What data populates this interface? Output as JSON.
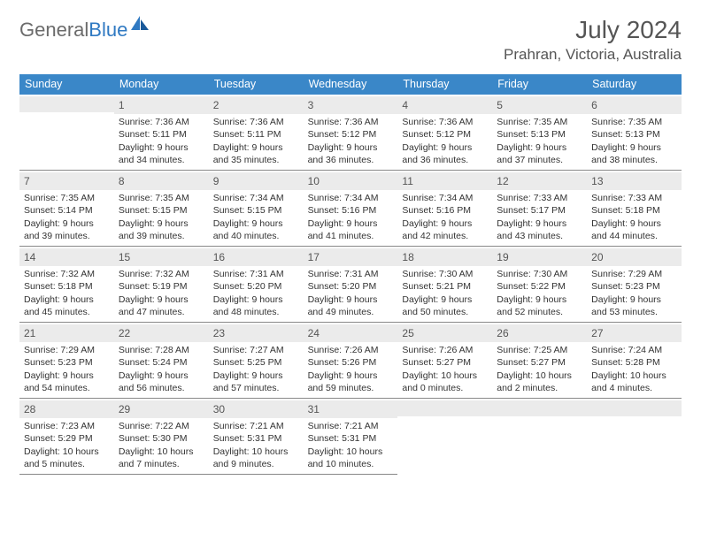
{
  "logo": {
    "text1": "General",
    "text2": "Blue"
  },
  "title": "July 2024",
  "location": "Prahran, Victoria, Australia",
  "header_bg": "#3a87c8",
  "header_fg": "#ffffff",
  "daynum_bg": "#ebebeb",
  "border_color": "#888888",
  "text_color": "#333333",
  "logo_blue": "#2f79c2",
  "logo_gray": "#6b6b6b",
  "weekdays": [
    "Sunday",
    "Monday",
    "Tuesday",
    "Wednesday",
    "Thursday",
    "Friday",
    "Saturday"
  ],
  "first_day_offset": 1,
  "days": [
    {
      "n": "1",
      "sunrise": "7:36 AM",
      "sunset": "5:11 PM",
      "daylight": "9 hours and 34 minutes."
    },
    {
      "n": "2",
      "sunrise": "7:36 AM",
      "sunset": "5:11 PM",
      "daylight": "9 hours and 35 minutes."
    },
    {
      "n": "3",
      "sunrise": "7:36 AM",
      "sunset": "5:12 PM",
      "daylight": "9 hours and 36 minutes."
    },
    {
      "n": "4",
      "sunrise": "7:36 AM",
      "sunset": "5:12 PM",
      "daylight": "9 hours and 36 minutes."
    },
    {
      "n": "5",
      "sunrise": "7:35 AM",
      "sunset": "5:13 PM",
      "daylight": "9 hours and 37 minutes."
    },
    {
      "n": "6",
      "sunrise": "7:35 AM",
      "sunset": "5:13 PM",
      "daylight": "9 hours and 38 minutes."
    },
    {
      "n": "7",
      "sunrise": "7:35 AM",
      "sunset": "5:14 PM",
      "daylight": "9 hours and 39 minutes."
    },
    {
      "n": "8",
      "sunrise": "7:35 AM",
      "sunset": "5:15 PM",
      "daylight": "9 hours and 39 minutes."
    },
    {
      "n": "9",
      "sunrise": "7:34 AM",
      "sunset": "5:15 PM",
      "daylight": "9 hours and 40 minutes."
    },
    {
      "n": "10",
      "sunrise": "7:34 AM",
      "sunset": "5:16 PM",
      "daylight": "9 hours and 41 minutes."
    },
    {
      "n": "11",
      "sunrise": "7:34 AM",
      "sunset": "5:16 PM",
      "daylight": "9 hours and 42 minutes."
    },
    {
      "n": "12",
      "sunrise": "7:33 AM",
      "sunset": "5:17 PM",
      "daylight": "9 hours and 43 minutes."
    },
    {
      "n": "13",
      "sunrise": "7:33 AM",
      "sunset": "5:18 PM",
      "daylight": "9 hours and 44 minutes."
    },
    {
      "n": "14",
      "sunrise": "7:32 AM",
      "sunset": "5:18 PM",
      "daylight": "9 hours and 45 minutes."
    },
    {
      "n": "15",
      "sunrise": "7:32 AM",
      "sunset": "5:19 PM",
      "daylight": "9 hours and 47 minutes."
    },
    {
      "n": "16",
      "sunrise": "7:31 AM",
      "sunset": "5:20 PM",
      "daylight": "9 hours and 48 minutes."
    },
    {
      "n": "17",
      "sunrise": "7:31 AM",
      "sunset": "5:20 PM",
      "daylight": "9 hours and 49 minutes."
    },
    {
      "n": "18",
      "sunrise": "7:30 AM",
      "sunset": "5:21 PM",
      "daylight": "9 hours and 50 minutes."
    },
    {
      "n": "19",
      "sunrise": "7:30 AM",
      "sunset": "5:22 PM",
      "daylight": "9 hours and 52 minutes."
    },
    {
      "n": "20",
      "sunrise": "7:29 AM",
      "sunset": "5:23 PM",
      "daylight": "9 hours and 53 minutes."
    },
    {
      "n": "21",
      "sunrise": "7:29 AM",
      "sunset": "5:23 PM",
      "daylight": "9 hours and 54 minutes."
    },
    {
      "n": "22",
      "sunrise": "7:28 AM",
      "sunset": "5:24 PM",
      "daylight": "9 hours and 56 minutes."
    },
    {
      "n": "23",
      "sunrise": "7:27 AM",
      "sunset": "5:25 PM",
      "daylight": "9 hours and 57 minutes."
    },
    {
      "n": "24",
      "sunrise": "7:26 AM",
      "sunset": "5:26 PM",
      "daylight": "9 hours and 59 minutes."
    },
    {
      "n": "25",
      "sunrise": "7:26 AM",
      "sunset": "5:27 PM",
      "daylight": "10 hours and 0 minutes."
    },
    {
      "n": "26",
      "sunrise": "7:25 AM",
      "sunset": "5:27 PM",
      "daylight": "10 hours and 2 minutes."
    },
    {
      "n": "27",
      "sunrise": "7:24 AM",
      "sunset": "5:28 PM",
      "daylight": "10 hours and 4 minutes."
    },
    {
      "n": "28",
      "sunrise": "7:23 AM",
      "sunset": "5:29 PM",
      "daylight": "10 hours and 5 minutes."
    },
    {
      "n": "29",
      "sunrise": "7:22 AM",
      "sunset": "5:30 PM",
      "daylight": "10 hours and 7 minutes."
    },
    {
      "n": "30",
      "sunrise": "7:21 AM",
      "sunset": "5:31 PM",
      "daylight": "10 hours and 9 minutes."
    },
    {
      "n": "31",
      "sunrise": "7:21 AM",
      "sunset": "5:31 PM",
      "daylight": "10 hours and 10 minutes."
    }
  ],
  "labels": {
    "sunrise": "Sunrise:",
    "sunset": "Sunset:",
    "daylight": "Daylight:"
  }
}
